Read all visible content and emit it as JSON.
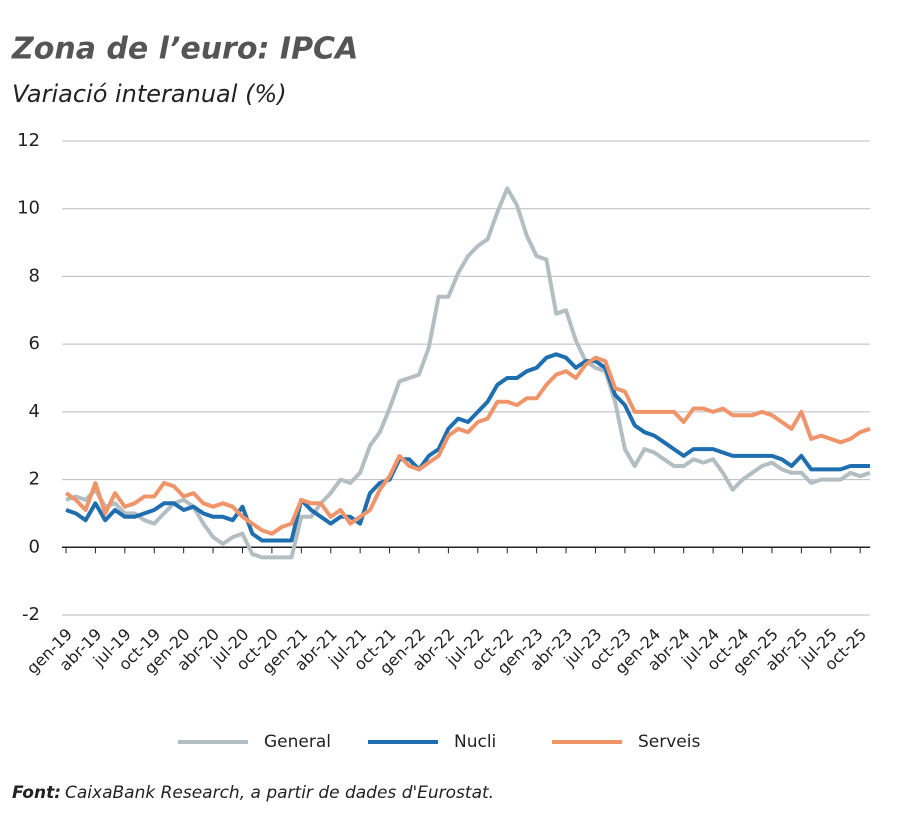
{
  "chart_data": {
    "type": "line",
    "title": "Zona de l’euro: IPCA",
    "subtitle": "Variació interanual (%)",
    "source_label": "Font:",
    "source": "CaixaBank Research, a partir de dades d'Eurostat.",
    "categories": [
      "gen-19",
      null,
      null,
      "abr-19",
      null,
      null,
      "jul-19",
      null,
      null,
      "oct-19",
      null,
      null,
      "gen-20",
      null,
      null,
      "abr-20",
      null,
      null,
      "jul-20",
      null,
      null,
      "oct-20",
      null,
      null,
      "gen-21",
      null,
      null,
      "abr-21",
      null,
      null,
      "jul-21",
      null,
      null,
      "oct-21",
      null,
      null,
      "gen-22",
      null,
      null,
      "abr-22",
      null,
      null,
      "jul-22",
      null,
      null,
      "oct-22",
      null,
      null,
      "gen-23",
      null,
      null,
      "abr-23",
      null,
      null,
      "jul-23",
      null,
      null,
      "oct-23",
      null,
      null,
      "gen-24",
      null,
      null,
      "abr-24",
      null,
      null,
      "jul-24",
      null,
      null,
      "oct-24",
      null,
      null,
      "gen-25",
      null,
      null,
      "abr-25",
      null,
      null,
      "jul-25",
      null,
      null,
      "oct-25",
      null
    ],
    "series": [
      {
        "name": "General",
        "color": "#b3bec2",
        "values": [
          1.4,
          1.5,
          1.4,
          1.7,
          1.2,
          1.3,
          1.0,
          1.0,
          0.8,
          0.7,
          1.0,
          1.3,
          1.4,
          1.2,
          0.7,
          0.3,
          0.1,
          0.3,
          0.4,
          -0.2,
          -0.3,
          -0.3,
          -0.3,
          -0.3,
          0.9,
          0.9,
          1.3,
          1.6,
          2.0,
          1.9,
          2.2,
          3.0,
          3.4,
          4.1,
          4.9,
          5.0,
          5.1,
          5.9,
          7.4,
          7.4,
          8.1,
          8.6,
          8.9,
          9.1,
          9.9,
          10.6,
          10.1,
          9.2,
          8.6,
          8.5,
          6.9,
          7.0,
          6.1,
          5.5,
          5.3,
          5.2,
          4.3,
          2.9,
          2.4,
          2.9,
          2.8,
          2.6,
          2.4,
          2.4,
          2.6,
          2.5,
          2.6,
          2.2,
          1.7,
          2.0,
          2.2,
          2.4,
          2.5,
          2.3,
          2.2,
          2.2,
          1.9,
          2.0,
          2.0,
          2.0,
          2.2,
          2.1,
          2.2
        ]
      },
      {
        "name": "Nucli",
        "color": "#1f6fb0",
        "values": [
          1.1,
          1.0,
          0.8,
          1.3,
          0.8,
          1.1,
          0.9,
          0.9,
          1.0,
          1.1,
          1.3,
          1.3,
          1.1,
          1.2,
          1.0,
          0.9,
          0.9,
          0.8,
          1.2,
          0.4,
          0.2,
          0.2,
          0.2,
          0.2,
          1.4,
          1.1,
          0.9,
          0.7,
          0.9,
          0.9,
          0.7,
          1.6,
          1.9,
          2.0,
          2.6,
          2.6,
          2.3,
          2.7,
          2.9,
          3.5,
          3.8,
          3.7,
          4.0,
          4.3,
          4.8,
          5.0,
          5.0,
          5.2,
          5.3,
          5.6,
          5.7,
          5.6,
          5.3,
          5.5,
          5.5,
          5.3,
          4.5,
          4.2,
          3.6,
          3.4,
          3.3,
          3.1,
          2.9,
          2.7,
          2.9,
          2.9,
          2.9,
          2.8,
          2.7,
          2.7,
          2.7,
          2.7,
          2.7,
          2.6,
          2.4,
          2.7,
          2.3,
          2.3,
          2.3,
          2.3,
          2.4,
          2.4,
          2.4
        ]
      },
      {
        "name": "Serveis",
        "color": "#f0956a",
        "values": [
          1.6,
          1.4,
          1.1,
          1.9,
          1.0,
          1.6,
          1.2,
          1.3,
          1.5,
          1.5,
          1.9,
          1.8,
          1.5,
          1.6,
          1.3,
          1.2,
          1.3,
          1.2,
          0.9,
          0.7,
          0.5,
          0.4,
          0.6,
          0.7,
          1.4,
          1.3,
          1.3,
          0.9,
          1.1,
          0.7,
          0.9,
          1.1,
          1.7,
          2.1,
          2.7,
          2.4,
          2.3,
          2.5,
          2.7,
          3.3,
          3.5,
          3.4,
          3.7,
          3.8,
          4.3,
          4.3,
          4.2,
          4.4,
          4.4,
          4.8,
          5.1,
          5.2,
          5.0,
          5.4,
          5.6,
          5.5,
          4.7,
          4.6,
          4.0,
          4.0,
          4.0,
          4.0,
          4.0,
          3.7,
          4.1,
          4.1,
          4.0,
          4.1,
          3.9,
          3.9,
          3.9,
          4.0,
          3.9,
          3.7,
          3.5,
          4.0,
          3.2,
          3.3,
          3.2,
          3.1,
          3.2,
          3.4,
          3.5
        ]
      }
    ],
    "ylim": [
      -2,
      12
    ],
    "yticks": [
      -2,
      0,
      2,
      4,
      6,
      8,
      10,
      12
    ],
    "grid": true
  }
}
